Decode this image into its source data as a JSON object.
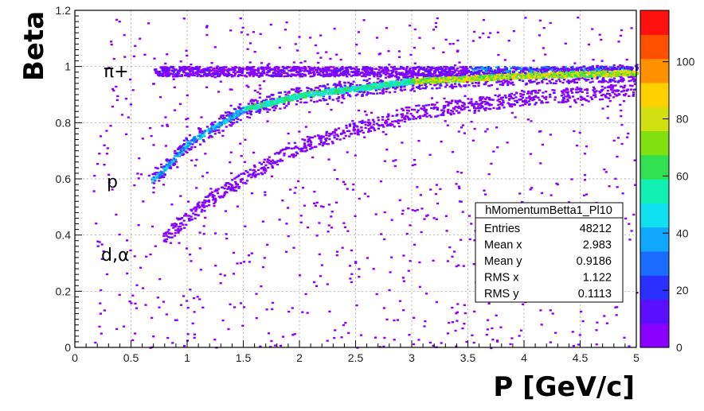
{
  "chart_data": {
    "type": "heatmap",
    "histogram_name": "hMomentumBetta1_Pl10",
    "xlabel": "P [GeV/c]",
    "ylabel": "Beta",
    "xlim": [
      0,
      5
    ],
    "ylim": [
      0,
      1.2
    ],
    "x_ticks": [
      "0",
      "0.5",
      "1",
      "1.5",
      "2",
      "2.5",
      "3",
      "3.5",
      "4",
      "4.5",
      "5"
    ],
    "y_ticks": [
      "0",
      "0.2",
      "0.4",
      "0.6",
      "0.8",
      "1",
      "1.2"
    ],
    "y_tick_values": [
      0,
      0.2,
      0.4,
      0.6,
      0.8,
      1.0,
      1.2
    ],
    "grid": true,
    "color_scale": {
      "min": 0,
      "max": 118,
      "ticks": [
        "0",
        "20",
        "40",
        "60",
        "80",
        "100"
      ],
      "tick_values": [
        0,
        20,
        40,
        60,
        80,
        100
      ],
      "colors": [
        "#8a00ff",
        "#5a10ff",
        "#2a30ff",
        "#1a6cff",
        "#10a8ff",
        "#10e0f0",
        "#10f0b0",
        "#30e050",
        "#80e010",
        "#d0e010",
        "#ffd000",
        "#ff9000",
        "#ff5000",
        "#ff1010"
      ]
    },
    "bands": [
      {
        "name": "π+",
        "beta": "≈0.98",
        "p_range": [
          0.7,
          5.0
        ]
      },
      {
        "name": "p",
        "beta_at_p": [
          [
            0.7,
            0.6
          ],
          [
            1.0,
            0.73
          ],
          [
            1.5,
            0.85
          ],
          [
            2.0,
            0.9
          ],
          [
            3.0,
            0.95
          ],
          [
            4.0,
            0.97
          ],
          [
            5.0,
            0.98
          ]
        ]
      },
      {
        "name": "d,α",
        "beta_at_p": [
          [
            0.8,
            0.4
          ],
          [
            1.2,
            0.53
          ],
          [
            1.6,
            0.63
          ],
          [
            2.0,
            0.72
          ],
          [
            2.5,
            0.78
          ],
          [
            3.0,
            0.84
          ],
          [
            4.0,
            0.89
          ],
          [
            5.0,
            0.92
          ]
        ]
      }
    ],
    "annotations": [
      "π+",
      "p",
      "d,α"
    ],
    "stats": [
      {
        "label": "Entries",
        "value": "48212"
      },
      {
        "label": "Mean x",
        "value": "2.983"
      },
      {
        "label": "Mean y",
        "value": "0.9186"
      },
      {
        "label": "RMS x",
        "value": "1.122"
      },
      {
        "label": "RMS y",
        "value": "0.1113"
      }
    ]
  }
}
